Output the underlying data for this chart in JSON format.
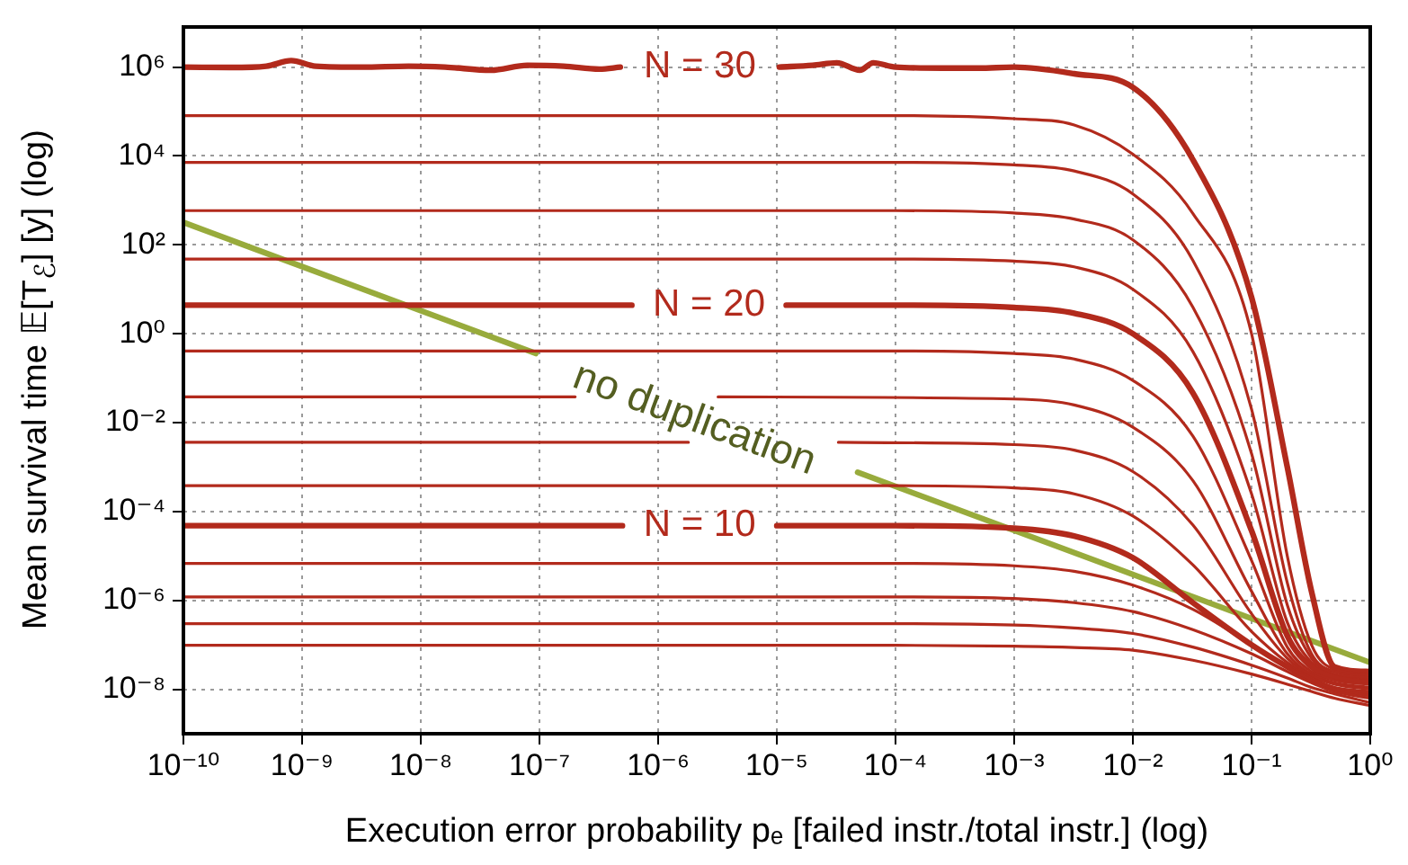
{
  "chart_data": {
    "type": "line",
    "xlabel": "Execution error probability pₑ [failed instr./total instr.] (log)",
    "ylabel": "Mean survival time 𝔼[T$_{ℰ}$] [y] (log)",
    "log": "xy",
    "grid": true,
    "legend": false,
    "marker": "none",
    "line_style": "solid",
    "xlim": [
      1e-10,
      1
    ],
    "ylim": [
      1e-09,
      8000000.0
    ],
    "xticks": [
      {
        "value": 1e-10,
        "label": "10⁻¹⁰"
      },
      {
        "value": 1e-09,
        "label": "10⁻⁹"
      },
      {
        "value": 1e-08,
        "label": "10⁻⁸"
      },
      {
        "value": 1e-07,
        "label": "10⁻⁷"
      },
      {
        "value": 1e-06,
        "label": "10⁻⁶"
      },
      {
        "value": 1e-05,
        "label": "10⁻⁵"
      },
      {
        "value": 0.0001,
        "label": "10⁻⁴"
      },
      {
        "value": 0.001,
        "label": "10⁻³"
      },
      {
        "value": 0.01,
        "label": "10⁻²"
      },
      {
        "value": 0.1,
        "label": "10⁻¹"
      },
      {
        "value": 1,
        "label": "10⁰"
      }
    ],
    "yticks": [
      {
        "value": 1e-08,
        "label": "10⁻⁸"
      },
      {
        "value": 1e-06,
        "label": "10⁻⁶"
      },
      {
        "value": 0.0001,
        "label": "10⁻⁴"
      },
      {
        "value": 0.01,
        "label": "10⁻²"
      },
      {
        "value": 1,
        "label": "10⁰"
      },
      {
        "value": 100,
        "label": "10²"
      },
      {
        "value": 10000,
        "label": "10⁴"
      },
      {
        "value": 1000000,
        "label": "10⁶"
      }
    ],
    "series": [
      {
        "color": "#b22a1c",
        "x": [
          1e-10,
          0.0001,
          0.001,
          0.0032,
          0.01,
          0.032,
          0.1,
          0.2,
          0.32,
          0.5,
          1
        ],
        "values": [
          9.8e-08,
          9.8e-08,
          9.3e-08,
          8.7e-08,
          7.6e-08,
          4.5e-08,
          2.2e-08,
          1.3e-08,
          8.9e-09,
          6.3e-09,
          4.3e-09
        ]
      },
      {
        "color": "#b22a1c",
        "x": [
          1e-10,
          0.0001,
          0.001,
          0.0032,
          0.01,
          0.032,
          0.1,
          0.2,
          0.32,
          0.5,
          1
        ],
        "values": [
          3e-07,
          3e-07,
          2.8e-07,
          2.4e-07,
          1.8e-07,
          8.9e-08,
          3.5e-08,
          1.8e-08,
          1.1e-08,
          7.9e-09,
          5e-09
        ]
      },
      {
        "color": "#b22a1c",
        "x": [
          1e-10,
          0.0001,
          0.001,
          0.0032,
          0.01,
          0.032,
          0.1,
          0.2,
          0.32,
          0.5,
          1
        ],
        "values": [
          1.2e-06,
          1.2e-06,
          1.1e-06,
          8.9e-07,
          5.6e-07,
          2.2e-07,
          6.3e-08,
          2.5e-08,
          1.4e-08,
          8.9e-09,
          6.3e-09
        ]
      },
      {
        "color": "#b22a1c",
        "x": [
          1e-10,
          0.0001,
          0.001,
          0.0032,
          0.01,
          0.032,
          0.1,
          0.2,
          0.32,
          0.5,
          1
        ],
        "values": [
          6.8e-06,
          6.8e-06,
          6e-06,
          4.5e-06,
          2.2e-06,
          6.3e-07,
          1e-07,
          3.2e-08,
          1.6e-08,
          1e-08,
          7.1e-09
        ]
      },
      {
        "name": "N = 10",
        "color": "#b22a1c",
        "x": [
          1e-10,
          5e-07,
          2e-06,
          1e-05,
          0.0001,
          0.001,
          0.0032,
          0.01,
          0.032,
          0.1,
          0.2,
          0.32,
          0.5,
          1
        ],
        "values": [
          4.8e-05,
          4.8e-05,
          null,
          4.8e-05,
          4.8e-05,
          4.2e-05,
          2.8e-05,
          9.1e-06,
          8.9e-07,
          1e-07,
          3.2e-08,
          1.6e-08,
          1e-08,
          7.9e-09
        ]
      },
      {
        "color": "#b22a1c",
        "x": [
          1e-10,
          0.0001,
          0.001,
          0.0032,
          0.01,
          0.032,
          0.1,
          0.2,
          0.32,
          0.5,
          1
        ],
        "values": [
          0.00038,
          0.00038,
          0.00034,
          0.00025,
          7.9e-05,
          6.3e-06,
          2e-07,
          4e-08,
          1.8e-08,
          1.1e-08,
          8.9e-09
        ]
      },
      {
        "color": "#b22a1c",
        "x": [
          1e-10,
          1.8e-06,
          2.5e-06,
          3.3e-05,
          0.001,
          0.0032,
          0.01,
          0.032,
          0.1,
          0.2,
          0.32,
          0.5,
          1
        ],
        "values": [
          0.0036,
          0.0036,
          null,
          0.0036,
          0.0032,
          0.0024,
          0.00079,
          5e-05,
          5e-07,
          5e-08,
          2e-08,
          1.3e-08,
          1e-08
        ]
      },
      {
        "color": "#b22a1c",
        "x": [
          1e-10,
          2e-07,
          1e-06,
          3.2e-06,
          0.001,
          0.0032,
          0.01,
          0.032,
          0.1,
          0.2,
          0.32,
          0.5,
          1
        ],
        "values": [
          0.038,
          0.038,
          null,
          0.038,
          0.034,
          0.025,
          0.0079,
          0.0005,
          1.6e-06,
          6.3e-08,
          2.2e-08,
          1.4e-08,
          1.1e-08
        ]
      },
      {
        "color": "#b22a1c",
        "x": [
          1e-10,
          0.0001,
          0.001,
          0.0032,
          0.01,
          0.032,
          0.1,
          0.2,
          0.32,
          0.5,
          1
        ],
        "values": [
          0.41,
          0.41,
          0.36,
          0.27,
          0.089,
          0.005,
          7.9e-06,
          8.9e-08,
          2.5e-08,
          1.6e-08,
          1.3e-08
        ]
      },
      {
        "name": "N = 20",
        "color": "#b22a1c",
        "x": [
          1e-10,
          6e-07,
          2e-06,
          1.2e-05,
          0.0001,
          0.001,
          0.0032,
          0.01,
          0.032,
          0.1,
          0.2,
          0.32,
          0.5,
          1
        ],
        "values": [
          4.4,
          4.4,
          null,
          4.4,
          4.4,
          3.9,
          2.9,
          1.0,
          0.047,
          3.7e-05,
          1.6e-07,
          3.2e-08,
          1.8e-08,
          1.4e-08
        ]
      },
      {
        "color": "#b22a1c",
        "x": [
          1e-10,
          0.0001,
          0.001,
          0.0032,
          0.01,
          0.032,
          0.1,
          0.2,
          0.32,
          0.5,
          1
        ],
        "values": [
          48,
          48,
          43,
          32,
          10,
          0.4,
          0.00025,
          3.2e-07,
          4e-08,
          2e-08,
          1.6e-08
        ]
      },
      {
        "color": "#b22a1c",
        "x": [
          1e-10,
          0.0001,
          0.001,
          0.0032,
          0.01,
          0.032,
          0.1,
          0.2,
          0.32,
          0.5,
          1
        ],
        "values": [
          590,
          590,
          520,
          380,
          130,
          4.0,
          0.002,
          7.9e-07,
          5e-08,
          2.2e-08,
          1.8e-08
        ]
      },
      {
        "color": "#b22a1c",
        "x": [
          1e-10,
          0.0001,
          0.001,
          0.0032,
          0.01,
          0.032,
          0.1,
          0.2,
          0.32,
          0.5,
          1
        ],
        "values": [
          7200,
          7200,
          6300,
          4600,
          1400,
          45,
          0.02,
          2.5e-06,
          6.3e-08,
          2.5e-08,
          2e-08
        ]
      },
      {
        "color": "#b22a1c",
        "x": [
          1e-10,
          0.0001,
          0.001,
          0.0032,
          0.01,
          0.032,
          0.1,
          0.2,
          0.32,
          0.5,
          1
        ],
        "values": [
          81000,
          81000,
          69000,
          50000,
          11000,
          510,
          1.0,
          1e-05,
          1e-07,
          2.8e-08,
          2.2e-08
        ]
      },
      {
        "name": "N = 30",
        "color": "#b22a1c",
        "x": [
          1e-10,
          2.5e-10,
          5e-10,
          8.1e-10,
          1.3e-09,
          3.2e-09,
          7.9e-09,
          1.6e-08,
          3.9e-08,
          7.9e-08,
          1.6e-07,
          3.2e-07,
          4.8e-07,
          2.5e-06,
          1.05e-05,
          2e-05,
          3.2e-05,
          5e-05,
          6.5e-05,
          0.0001,
          0.00025,
          0.0005,
          0.001,
          0.0032,
          0.01,
          0.032,
          0.1,
          0.2,
          0.32,
          0.5,
          1
        ],
        "values": [
          1000000.0,
          980000.0,
          1050000.0,
          1400000.0,
          1050000.0,
          1000000.0,
          1050000.0,
          1000000.0,
          850000.0,
          1100000.0,
          1050000.0,
          900000.0,
          1000000.0,
          null,
          1000000.0,
          1100000.0,
          1250000.0,
          850000.0,
          1250000.0,
          1000000.0,
          950000.0,
          950000.0,
          1000000.0,
          710000.0,
          350000.0,
          8300,
          6.6,
          0.001,
          1.6e-06,
          3.2e-08,
          2.5e-08
        ]
      },
      {
        "name": "no duplication",
        "color": "#98ab3c",
        "x": [
          1e-10,
          9.3e-08,
          1e-06,
          4.8e-05,
          1
        ],
        "values": [
          320,
          0.36,
          null,
          0.00076,
          4e-08
        ]
      }
    ]
  }
}
